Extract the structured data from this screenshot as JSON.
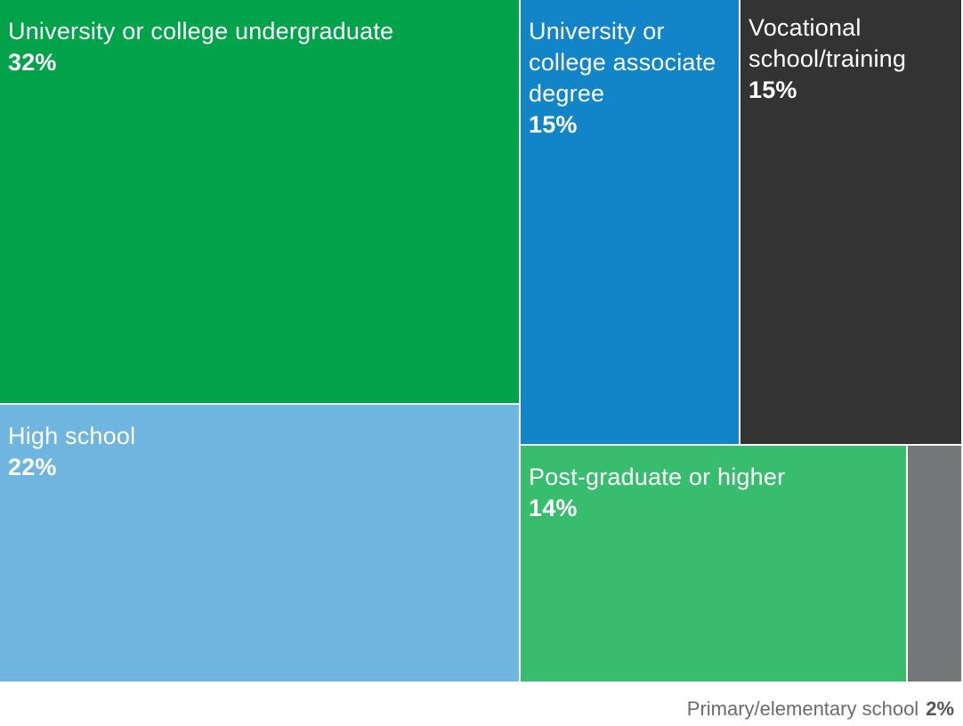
{
  "chart_data": {
    "type": "treemap",
    "items": [
      {
        "label": "University or college undergraduate",
        "value": 32,
        "value_label": "32%",
        "color": "#00a34a"
      },
      {
        "label": "High school",
        "value": 22,
        "value_label": "22%",
        "color": "#6eb6df"
      },
      {
        "label": "University or college associate degree",
        "value": 15,
        "value_label": "15%",
        "color": "#1285c9"
      },
      {
        "label": "Vocational school/training",
        "value": 15,
        "value_label": "15%",
        "color": "#333333"
      },
      {
        "label": "Post-graduate or higher",
        "value": 14,
        "value_label": "14%",
        "color": "#38bd6e"
      },
      {
        "label": "Primary/elementary school",
        "value": 2,
        "value_label": "2%",
        "color": "#757678"
      }
    ]
  }
}
